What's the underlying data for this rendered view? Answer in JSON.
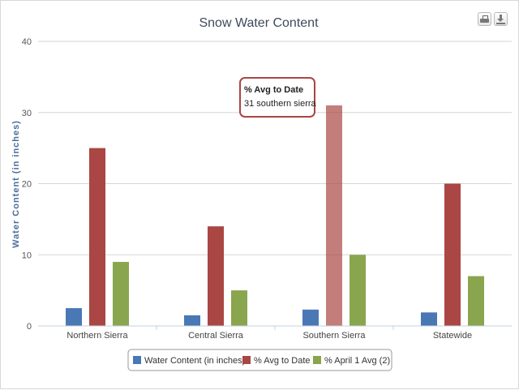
{
  "chart_data": {
    "type": "bar",
    "title": "Snow Water Content",
    "xlabel": "",
    "ylabel": "Water Content (in inches)",
    "ylim": [
      0,
      40
    ],
    "yticks": [
      0,
      10,
      20,
      30,
      40
    ],
    "grid": true,
    "legend_position": "bottom-center",
    "categories": [
      "Northern Sierra",
      "Central Sierra",
      "Southern Sierra",
      "Statewide"
    ],
    "series": [
      {
        "name": "Water Content (in inches)",
        "values": [
          2.5,
          1.5,
          2.3,
          1.9
        ],
        "color": "#4a78b5"
      },
      {
        "name": "% Avg to Date",
        "values": [
          25,
          14,
          31,
          20
        ],
        "color": "#aa4643"
      },
      {
        "name": "% April 1 Avg (2)",
        "values": [
          9,
          5,
          10,
          7
        ],
        "color": "#89a54e"
      }
    ],
    "tooltip": {
      "title": "% Avg to Date",
      "body": "31 southern sierra",
      "series_index": 1,
      "category_index": 2,
      "border_color": "#aa4643"
    }
  },
  "toolbar": {
    "print_icon": "printer-icon",
    "export_icon": "download-icon"
  }
}
